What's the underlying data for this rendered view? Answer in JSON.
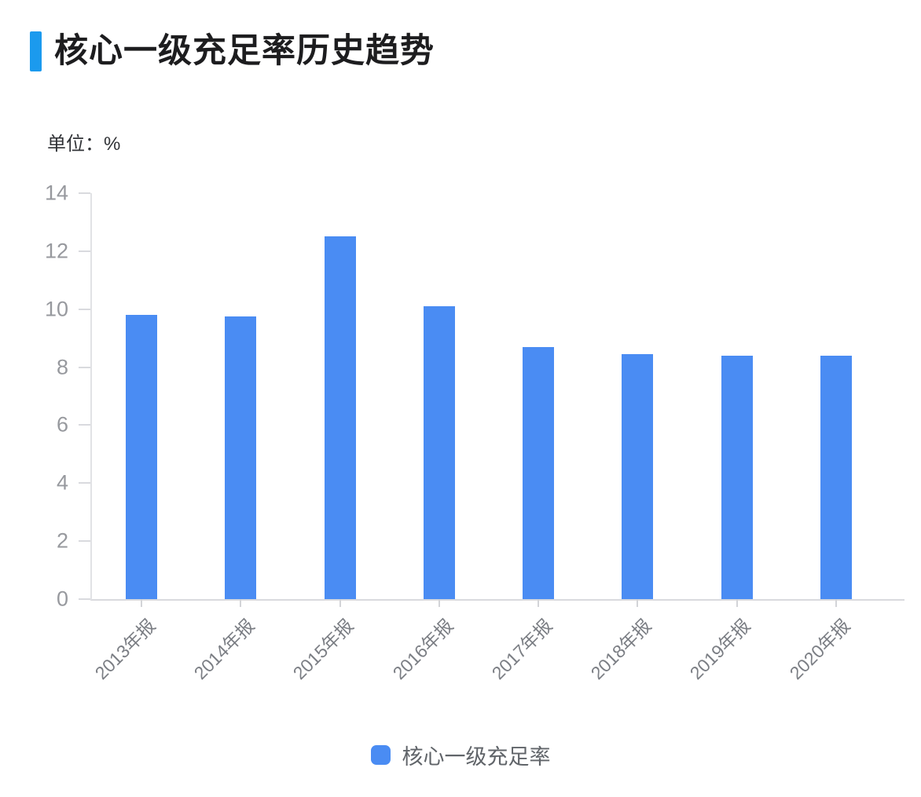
{
  "header": {
    "title": "核心一级充足率历史趋势",
    "accent_color": "#1b9aee"
  },
  "unit_label": "单位：%",
  "legend": {
    "items": [
      {
        "label": "核心一级充足率",
        "swatch_color": "#4a8cf3"
      }
    ]
  },
  "chart_data": {
    "type": "bar",
    "title": "核心一级充足率历史趋势",
    "categories": [
      "2013年报",
      "2014年报",
      "2015年报",
      "2016年报",
      "2017年报",
      "2018年报",
      "2019年报",
      "2020年报"
    ],
    "series": [
      {
        "name": "核心一级充足率",
        "values": [
          9.8,
          9.75,
          12.5,
          10.1,
          8.7,
          8.45,
          8.4,
          8.4
        ]
      }
    ],
    "xlabel": "",
    "ylabel": "单位：%",
    "ylim": [
      0,
      14
    ],
    "yticks": [
      0,
      2,
      4,
      6,
      8,
      10,
      12,
      14
    ],
    "grid": false,
    "legend_position": "bottom-center",
    "x_label_rotation_deg": 45,
    "bar_color": "#4a8cf3",
    "axis_color": "#d9dade",
    "y_tick_label_color": "#97999e",
    "x_tick_label_color": "#7b7e84"
  }
}
